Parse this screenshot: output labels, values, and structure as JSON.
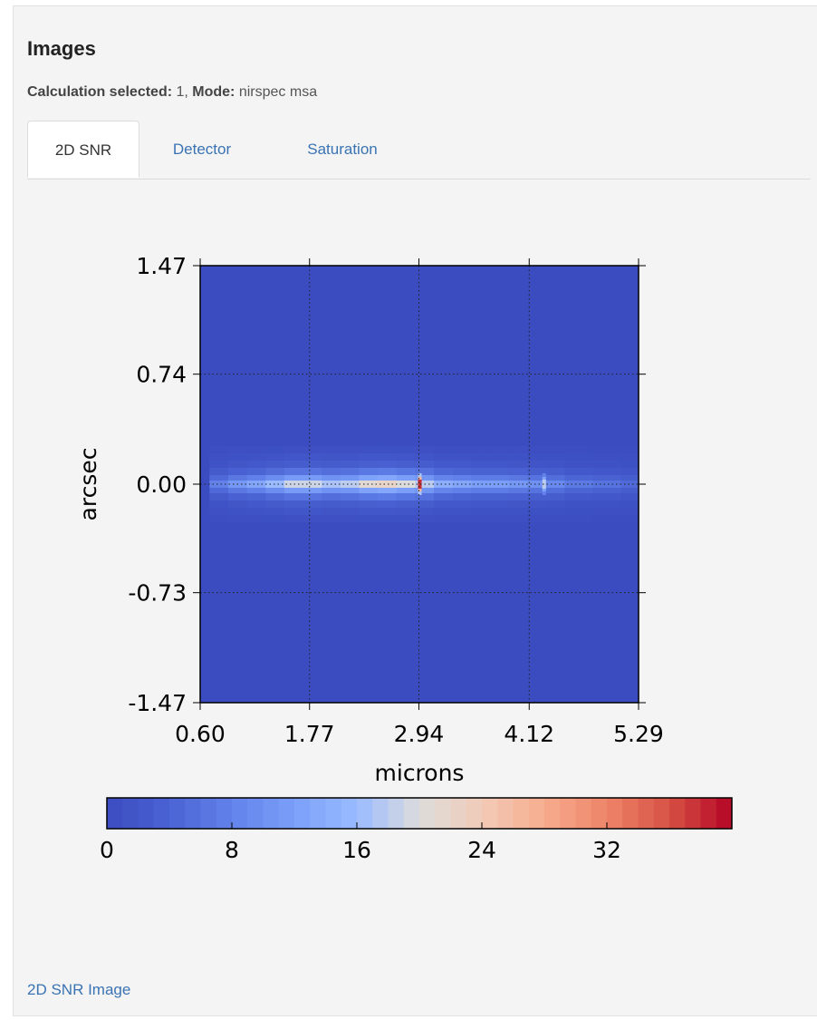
{
  "panel": {
    "title": "Images",
    "subtitle": {
      "calc_label": "Calculation selected:",
      "calc_value": " 1, ",
      "mode_label": "Mode:",
      "mode_value": " nirspec msa"
    }
  },
  "tabs": [
    {
      "label": "2D SNR",
      "active": true
    },
    {
      "label": "Detector",
      "active": false
    },
    {
      "label": "Saturation",
      "active": false
    }
  ],
  "footer_link": "2D SNR Image",
  "chart_data": {
    "type": "heatmap",
    "xlabel": "microns",
    "ylabel": "arcsec",
    "xticks": [
      "0.60",
      "1.77",
      "2.94",
      "4.12",
      "5.29"
    ],
    "xlim": [
      0.6,
      5.29
    ],
    "yticks": [
      "1.47",
      "0.74",
      "0.00",
      "-0.73",
      "-1.47"
    ],
    "ylim": [
      -1.47,
      1.47
    ],
    "grid": true,
    "colorbar": {
      "ticks": [
        "0",
        "8",
        "16",
        "24",
        "32"
      ],
      "range": [
        0,
        40
      ],
      "colormap": "coolwarm",
      "orientation": "horizontal"
    },
    "background_value": 0,
    "trace": {
      "y_center": 0.0,
      "x_start": 0.7,
      "x_end": 5.29,
      "profile": [
        {
          "x": 0.7,
          "snr": 8
        },
        {
          "x": 0.9,
          "snr": 11
        },
        {
          "x": 1.1,
          "snr": 13
        },
        {
          "x": 1.3,
          "snr": 16
        },
        {
          "x": 1.5,
          "snr": 19
        },
        {
          "x": 1.7,
          "snr": 19
        },
        {
          "x": 1.9,
          "snr": 17
        },
        {
          "x": 2.1,
          "snr": 18
        },
        {
          "x": 2.3,
          "snr": 21
        },
        {
          "x": 2.5,
          "snr": 22
        },
        {
          "x": 2.7,
          "snr": 20
        },
        {
          "x": 2.9,
          "snr": 18
        },
        {
          "x": 3.1,
          "snr": 14
        },
        {
          "x": 3.3,
          "snr": 13
        },
        {
          "x": 3.5,
          "snr": 12
        },
        {
          "x": 3.7,
          "snr": 12
        },
        {
          "x": 3.9,
          "snr": 11
        },
        {
          "x": 4.1,
          "snr": 10
        },
        {
          "x": 4.3,
          "snr": 9
        },
        {
          "x": 4.5,
          "snr": 7
        },
        {
          "x": 4.8,
          "snr": 6
        },
        {
          "x": 5.1,
          "snr": 5
        }
      ],
      "features": [
        {
          "x": 2.95,
          "snr": 38
        },
        {
          "x": 4.28,
          "snr": 18
        }
      ]
    }
  }
}
